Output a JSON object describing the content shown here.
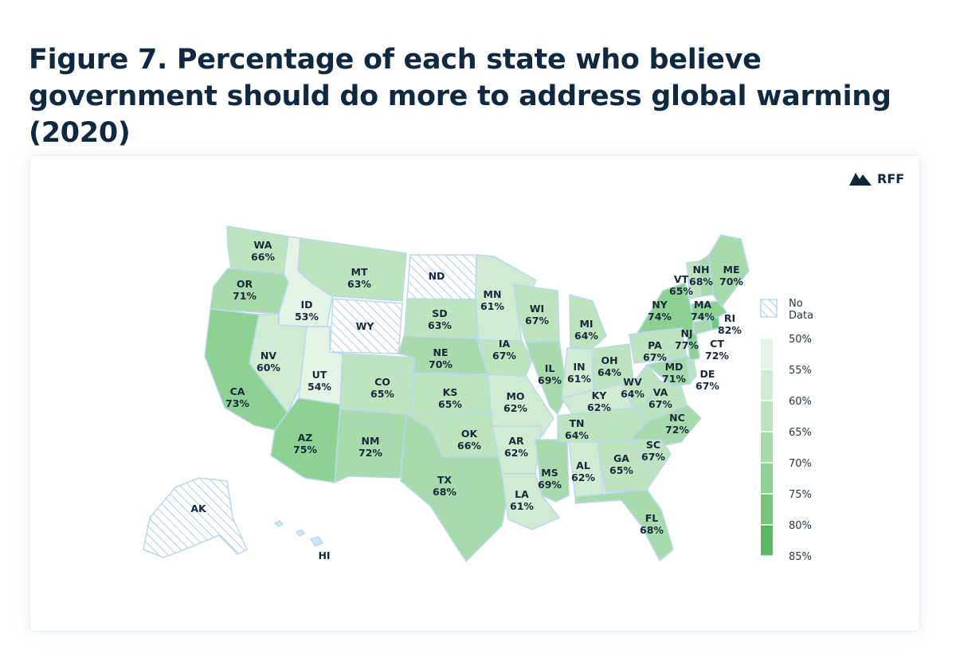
{
  "title": "Figure 7. Percentage of each state who believe government should do more to address global warming (2020)",
  "brand": {
    "name": "RFF",
    "icon": "mountain-logo-icon"
  },
  "legend": {
    "no_data_label_1": "No",
    "no_data_label_2": "Data",
    "ticks": [
      "50%",
      "55%",
      "60%",
      "65%",
      "70%",
      "75%",
      "80%",
      "85%"
    ],
    "colors": [
      "#f6faf6",
      "#e4f3e5",
      "#d0ebd2",
      "#bde3bf",
      "#a7dbab",
      "#8ed293",
      "#72c57a",
      "#58b862"
    ]
  },
  "states": [
    {
      "code": "WA",
      "value": "66%"
    },
    {
      "code": "OR",
      "value": "71%"
    },
    {
      "code": "CA",
      "value": "73%"
    },
    {
      "code": "ID",
      "value": "53%"
    },
    {
      "code": "NV",
      "value": "60%"
    },
    {
      "code": "MT",
      "value": "63%"
    },
    {
      "code": "WY",
      "value": ""
    },
    {
      "code": "UT",
      "value": "54%"
    },
    {
      "code": "AZ",
      "value": "75%"
    },
    {
      "code": "CO",
      "value": "65%"
    },
    {
      "code": "NM",
      "value": "72%"
    },
    {
      "code": "ND",
      "value": ""
    },
    {
      "code": "SD",
      "value": "63%"
    },
    {
      "code": "NE",
      "value": "70%"
    },
    {
      "code": "KS",
      "value": "65%"
    },
    {
      "code": "OK",
      "value": "66%"
    },
    {
      "code": "TX",
      "value": "68%"
    },
    {
      "code": "MN",
      "value": "61%"
    },
    {
      "code": "IA",
      "value": "67%"
    },
    {
      "code": "MO",
      "value": "62%"
    },
    {
      "code": "AR",
      "value": "62%"
    },
    {
      "code": "LA",
      "value": "61%"
    },
    {
      "code": "WI",
      "value": "67%"
    },
    {
      "code": "IL",
      "value": "69%"
    },
    {
      "code": "MS",
      "value": "69%"
    },
    {
      "code": "MI",
      "value": "64%"
    },
    {
      "code": "IN",
      "value": "61%"
    },
    {
      "code": "KY",
      "value": "62%"
    },
    {
      "code": "TN",
      "value": "64%"
    },
    {
      "code": "AL",
      "value": "62%"
    },
    {
      "code": "GA",
      "value": "65%"
    },
    {
      "code": "FL",
      "value": "68%"
    },
    {
      "code": "OH",
      "value": "64%"
    },
    {
      "code": "WV",
      "value": "64%"
    },
    {
      "code": "VA",
      "value": "67%"
    },
    {
      "code": "NC",
      "value": "72%"
    },
    {
      "code": "SC",
      "value": "67%"
    },
    {
      "code": "PA",
      "value": "67%"
    },
    {
      "code": "NY",
      "value": "74%"
    },
    {
      "code": "MD",
      "value": "71%"
    },
    {
      "code": "DE",
      "value": "67%"
    },
    {
      "code": "NJ",
      "value": "77%"
    },
    {
      "code": "CT",
      "value": "72%"
    },
    {
      "code": "RI",
      "value": "82%"
    },
    {
      "code": "MA",
      "value": "74%"
    },
    {
      "code": "VT",
      "value": "65%"
    },
    {
      "code": "NH",
      "value": "68%"
    },
    {
      "code": "ME",
      "value": "70%"
    },
    {
      "code": "AK",
      "value": ""
    },
    {
      "code": "HI",
      "value": ""
    }
  ]
}
